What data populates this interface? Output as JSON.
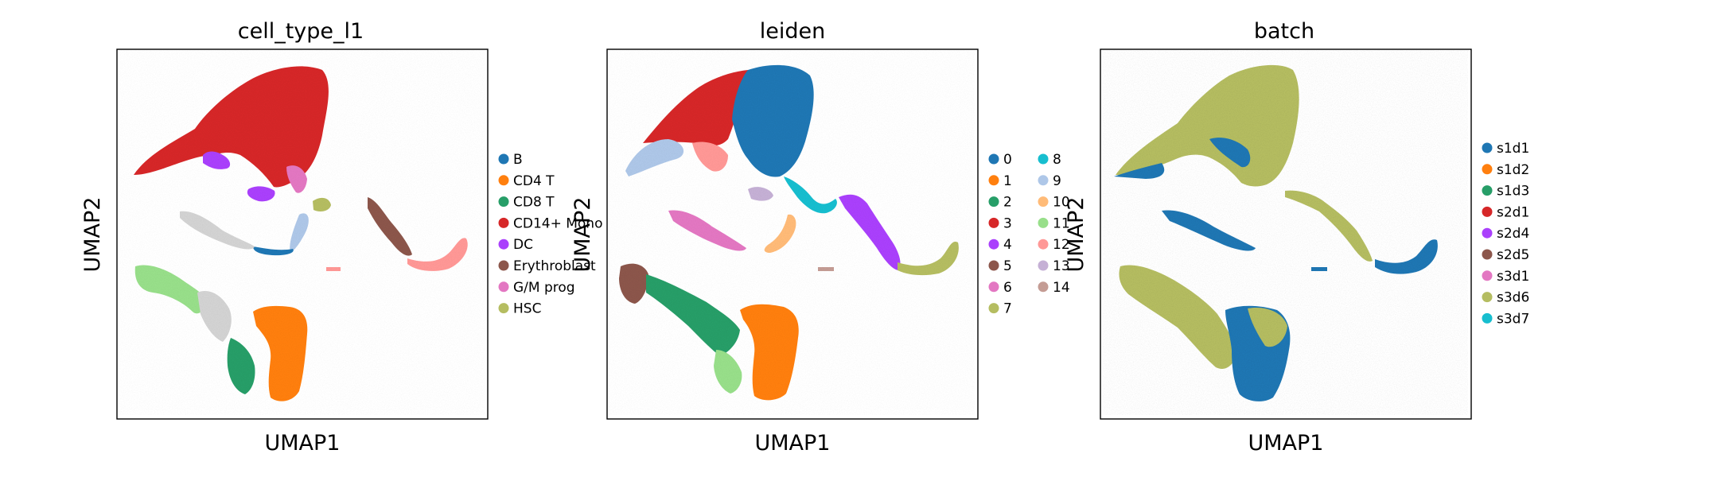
{
  "chart_data": [
    {
      "type": "scatter",
      "title": "cell_type_l1",
      "xlabel": "UMAP1",
      "ylabel": "UMAP2",
      "legend_position": "right",
      "legend_columns": 1,
      "series": [
        {
          "name": "B",
          "color": "#1f77b4"
        },
        {
          "name": "CD4 T",
          "color": "#ff7f0e"
        },
        {
          "name": "CD8 T",
          "color": "#279e68"
        },
        {
          "name": "CD14+ Mono",
          "color": "#d62728"
        },
        {
          "name": "DC",
          "color": "#aa40fc"
        },
        {
          "name": "Erythroblast",
          "color": "#8c564b"
        },
        {
          "name": "G/M prog",
          "color": "#e377c2"
        },
        {
          "name": "HSC",
          "color": "#b5bd61"
        }
      ],
      "extra_colors": [
        "#98df8a",
        "#aec7e8",
        "#ff9896",
        "#d3d3d3"
      ]
    },
    {
      "type": "scatter",
      "title": "leiden",
      "xlabel": "UMAP1",
      "ylabel": "UMAP2",
      "legend_position": "right",
      "legend_columns": 2,
      "series": [
        {
          "name": "0",
          "color": "#1f77b4"
        },
        {
          "name": "1",
          "color": "#ff7f0e"
        },
        {
          "name": "2",
          "color": "#279e68"
        },
        {
          "name": "3",
          "color": "#d62728"
        },
        {
          "name": "4",
          "color": "#aa40fc"
        },
        {
          "name": "5",
          "color": "#8c564b"
        },
        {
          "name": "6",
          "color": "#e377c2"
        },
        {
          "name": "7",
          "color": "#b5bd61"
        },
        {
          "name": "8",
          "color": "#17becf"
        },
        {
          "name": "9",
          "color": "#aec7e8"
        },
        {
          "name": "10",
          "color": "#ffbb78"
        },
        {
          "name": "11",
          "color": "#98df8a"
        },
        {
          "name": "12",
          "color": "#ff9896"
        },
        {
          "name": "13",
          "color": "#c5b0d5"
        },
        {
          "name": "14",
          "color": "#c49c94"
        }
      ]
    },
    {
      "type": "scatter",
      "title": "batch",
      "xlabel": "UMAP1",
      "ylabel": "UMAP2",
      "legend_position": "right",
      "legend_columns": 1,
      "series": [
        {
          "name": "s1d1",
          "color": "#1f77b4"
        },
        {
          "name": "s1d2",
          "color": "#ff7f0e"
        },
        {
          "name": "s1d3",
          "color": "#279e68"
        },
        {
          "name": "s2d1",
          "color": "#d62728"
        },
        {
          "name": "s2d4",
          "color": "#aa40fc"
        },
        {
          "name": "s2d5",
          "color": "#8c564b"
        },
        {
          "name": "s3d1",
          "color": "#e377c2"
        },
        {
          "name": "s3d6",
          "color": "#b5bd61"
        },
        {
          "name": "s3d7",
          "color": "#17becf"
        }
      ]
    }
  ]
}
